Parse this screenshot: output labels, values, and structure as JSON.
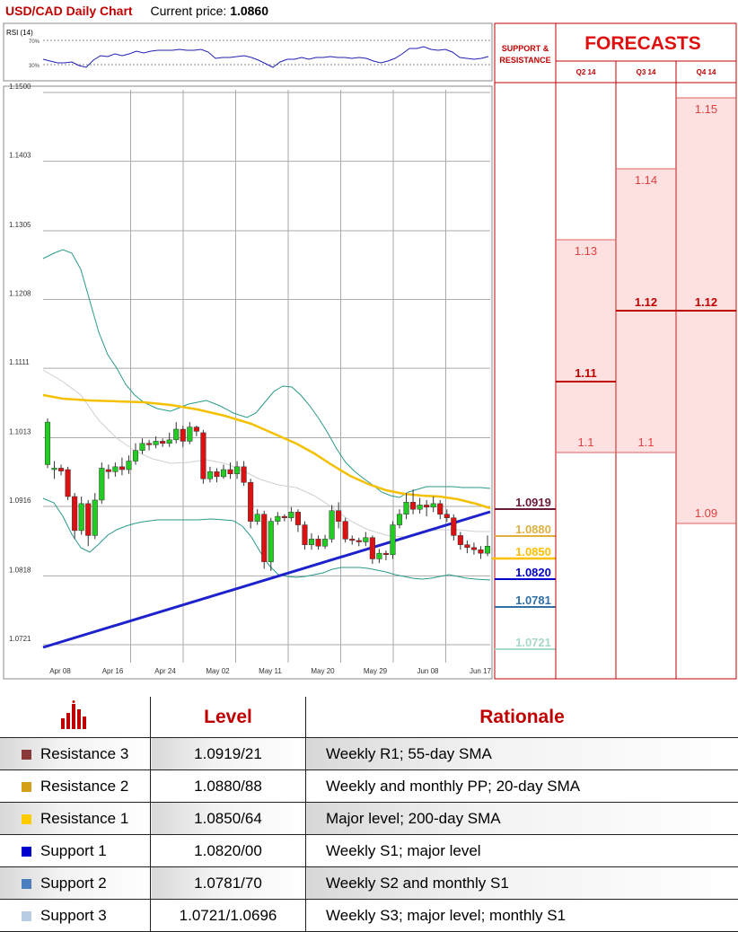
{
  "header": {
    "title": "USD/CAD Daily Chart",
    "price_label": "Current price:",
    "price_value": "1.0860"
  },
  "rsi_panel": {
    "label": "RSI (14)",
    "upper": "70%",
    "lower": "30%"
  },
  "support_resistance": {
    "header_line1": "SUPPORT &",
    "header_line2": "RESISTANCE"
  },
  "forecasts": {
    "title": "FORECASTS",
    "quarters": [
      {
        "label": "Q2 14",
        "range_low": 1.1,
        "range_high": 1.13,
        "levels": [
          "1.13",
          "1.11",
          "1.1"
        ]
      },
      {
        "label": "Q3 14",
        "range_low": 1.1,
        "range_high": 1.14,
        "levels": [
          "1.14",
          "1.12",
          "1.1"
        ]
      },
      {
        "label": "Q4 14",
        "range_low": 1.09,
        "range_high": 1.15,
        "levels": [
          "1.15",
          "1.12",
          "1.09"
        ]
      }
    ],
    "bold_levels": [
      "1.11",
      "1.12"
    ]
  },
  "sr_levels": [
    {
      "value": "1.0919",
      "color": "#6b1a3a",
      "fill": true
    },
    {
      "value": "1.0880",
      "color": "#e0b040",
      "fill": false
    },
    {
      "value": "1.0850",
      "color": "#ffc000",
      "fill": true
    },
    {
      "value": "1.0820",
      "color": "#0000cc",
      "fill": true
    },
    {
      "value": "1.0781",
      "color": "#2f6fa3",
      "fill": false
    },
    {
      "value": "1.0721",
      "color": "#a8d8c8",
      "fill": false
    }
  ],
  "chart_data": {
    "type": "candlestick",
    "y_ticks": [
      "1.1500",
      "1.1403",
      "1.1305",
      "1.1208",
      "1.1111",
      "1.1013",
      "1.0916",
      "1.0818",
      "1.0721"
    ],
    "x_ticks": [
      "Apr 08",
      "Apr 16",
      "Apr 24",
      "May 02",
      "May 11",
      "May 20",
      "May 29",
      "Jun 08",
      "Jun 17"
    ],
    "ylim": [
      1.0721,
      1.15
    ],
    "candles": [
      [
        1.0975,
        1.1035,
        1.104,
        1.097
      ],
      [
        1.0968,
        1.097,
        1.098,
        1.0955
      ],
      [
        1.097,
        1.0966,
        1.0975,
        1.096
      ],
      [
        1.0968,
        1.093,
        1.0972,
        1.0925
      ],
      [
        1.093,
        1.0882,
        1.0935,
        1.087
      ],
      [
        1.0882,
        1.092,
        1.093,
        1.0876
      ],
      [
        1.092,
        1.0875,
        1.0925,
        1.086
      ],
      [
        1.0875,
        1.0925,
        1.0935,
        1.087
      ],
      [
        1.0925,
        1.097,
        1.0978,
        1.092
      ],
      [
        1.0968,
        1.0965,
        1.0975,
        1.0955
      ],
      [
        1.0965,
        1.0972,
        1.0978,
        1.0958
      ],
      [
        1.0972,
        1.0968,
        1.0985,
        1.096
      ],
      [
        1.0968,
        1.098,
        1.0988,
        1.0962
      ],
      [
        1.098,
        1.0995,
        1.1005,
        1.0975
      ],
      [
        1.0995,
        1.1005,
        1.1012,
        1.099
      ],
      [
        1.1005,
        1.1003,
        1.101,
        1.0995
      ],
      [
        1.1003,
        1.1008,
        1.1015,
        1.0998
      ],
      [
        1.1008,
        1.1005,
        1.1012,
        1.1
      ],
      [
        1.1005,
        1.101,
        1.102,
        1.1
      ],
      [
        1.101,
        1.1025,
        1.1035,
        1.1005
      ],
      [
        1.1025,
        1.1008,
        1.103,
        1.1
      ],
      [
        1.1008,
        1.1028,
        1.1035,
        1.1004
      ],
      [
        1.1028,
        1.1022,
        1.103,
        1.1015
      ],
      [
        1.102,
        1.0955,
        1.1024,
        1.0948
      ],
      [
        1.0955,
        1.0965,
        1.0972,
        1.095
      ],
      [
        1.0965,
        1.0958,
        1.097,
        1.095
      ],
      [
        1.0958,
        1.0968,
        1.0975,
        1.0955
      ],
      [
        1.0968,
        1.0962,
        1.0978,
        1.0955
      ],
      [
        1.0962,
        1.0972,
        1.098,
        1.0955
      ],
      [
        1.0972,
        1.095,
        1.098,
        1.0945
      ],
      [
        1.095,
        1.0895,
        1.0955,
        1.0885
      ],
      [
        1.0895,
        1.0905,
        1.0912,
        1.089
      ],
      [
        1.0905,
        1.0838,
        1.091,
        1.0828
      ],
      [
        1.0838,
        1.0895,
        1.09,
        1.0825
      ],
      [
        1.0895,
        1.0902,
        1.0908,
        1.089
      ],
      [
        1.0902,
        1.09,
        1.0905,
        1.0895
      ],
      [
        1.09,
        1.0908,
        1.0915,
        1.0895
      ],
      [
        1.0908,
        1.089,
        1.0912,
        1.088
      ],
      [
        1.089,
        1.0862,
        1.0895,
        1.0855
      ],
      [
        1.0862,
        1.087,
        1.0878,
        1.0855
      ],
      [
        1.087,
        1.086,
        1.0875,
        1.0855
      ],
      [
        1.086,
        1.087,
        1.0876,
        1.0856
      ],
      [
        1.087,
        1.091,
        1.0918,
        1.0865
      ],
      [
        1.091,
        1.0895,
        1.0922,
        1.0885
      ],
      [
        1.0895,
        1.087,
        1.09,
        1.0865
      ],
      [
        1.087,
        1.0868,
        1.0875,
        1.0862
      ],
      [
        1.0868,
        1.0866,
        1.0872,
        1.086
      ],
      [
        1.0866,
        1.0872,
        1.088,
        1.086
      ],
      [
        1.0872,
        1.0842,
        1.0875,
        1.0835
      ],
      [
        1.0842,
        1.085,
        1.0856,
        1.0836
      ],
      [
        1.085,
        1.0848,
        1.0854,
        1.084
      ],
      [
        1.0848,
        1.089,
        1.0895,
        1.0842
      ],
      [
        1.089,
        1.0905,
        1.0912,
        1.0885
      ],
      [
        1.0905,
        1.0922,
        1.0935,
        1.0898
      ],
      [
        1.0922,
        1.0912,
        1.094,
        1.0905
      ],
      [
        1.0912,
        1.0918,
        1.0928,
        1.0906
      ],
      [
        1.0918,
        1.0915,
        1.0925,
        1.0902
      ],
      [
        1.0915,
        1.092,
        1.093,
        1.0908
      ],
      [
        1.092,
        1.0905,
        1.0925,
        1.0898
      ],
      [
        1.0905,
        1.09,
        1.0912,
        1.0894
      ],
      [
        1.09,
        1.0875,
        1.0905,
        1.0868
      ],
      [
        1.0875,
        1.0862,
        1.088,
        1.0855
      ],
      [
        1.0862,
        1.0858,
        1.0868,
        1.085
      ],
      [
        1.0858,
        1.0855,
        1.0865,
        1.0848
      ],
      [
        1.0855,
        1.085,
        1.086,
        1.0842
      ],
      [
        1.085,
        1.086,
        1.0875,
        1.0846
      ]
    ]
  },
  "table": {
    "headers": {
      "level": "Level",
      "rationale": "Rationale"
    },
    "rows": [
      {
        "name": "Resistance 3",
        "level": "1.0919/21",
        "rationale": "Weekly R1; 55-day SMA",
        "color": "#8b3a3a"
      },
      {
        "name": "Resistance 2",
        "level": "1.0880/88",
        "rationale": "Weekly and monthly PP; 20-day SMA",
        "color": "#d4a017"
      },
      {
        "name": "Resistance 1",
        "level": "1.0850/64",
        "rationale": "Major level; 200-day SMA",
        "color": "#ffcc00"
      },
      {
        "name": "Support 1",
        "level": "1.0820/00",
        "rationale": "Weekly S1; major level",
        "color": "#0000cc"
      },
      {
        "name": "Support 2",
        "level": "1.0781/70",
        "rationale": "Weekly S2 and monthly S1",
        "color": "#4a7ebf"
      },
      {
        "name": "Support 3",
        "level": "1.0721/1.0696",
        "rationale": "Weekly S3; major level; monthly S1",
        "color": "#b8cce4"
      }
    ]
  }
}
